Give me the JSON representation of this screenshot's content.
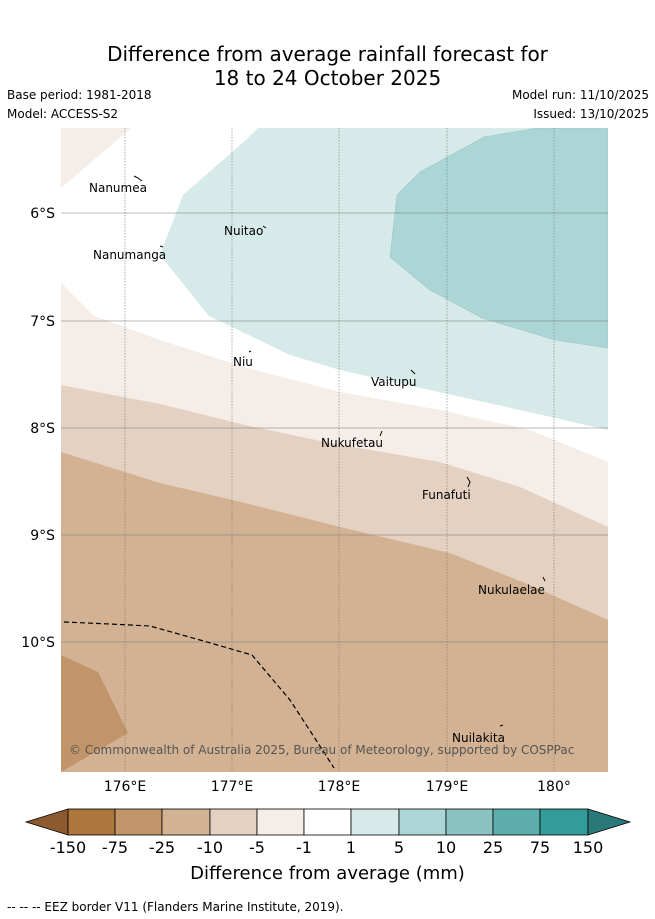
{
  "header": {
    "title_line1": "Difference from average rainfall forecast for",
    "title_line2": "18 to 24 October 2025",
    "base_period": "Base period: 1981-2018",
    "model": "Model: ACCESS-S2",
    "model_run": "Model run: 11/10/2025",
    "issued": "Issued: 13/10/2025"
  },
  "map": {
    "lat_labels": [
      "6°S",
      "7°S",
      "8°S",
      "9°S",
      "10°S"
    ],
    "lon_labels": [
      "176°E",
      "177°E",
      "178°E",
      "179°E",
      "180°"
    ],
    "places": [
      {
        "name": "Nanumea",
        "lon": 176.05,
        "lat": -5.7
      },
      {
        "name": "Nuitao",
        "lon": 177.3,
        "lat": -6.1
      },
      {
        "name": "Nanumanga",
        "lon": 176.32,
        "lat": -6.3
      },
      {
        "name": "Niu",
        "lon": 177.17,
        "lat": -7.3
      },
      {
        "name": "Vaitupu",
        "lon": 178.68,
        "lat": -7.49
      },
      {
        "name": "Nukufetau",
        "lon": 178.38,
        "lat": -8.04
      },
      {
        "name": "Funafuti",
        "lon": 179.2,
        "lat": -8.53
      },
      {
        "name": "Nukulaelae",
        "lon": 179.83,
        "lat": -9.4
      },
      {
        "name": "Nuilakita",
        "lon": 179.52,
        "lat": -10.8
      }
    ],
    "copyright": "© Commonwealth of Australia 2025, Bureau of Meteorology, supported by COSPPac"
  },
  "colorbar": {
    "title": "Difference from average (mm)",
    "ticks": [
      "-150",
      "-75",
      "-25",
      "-10",
      "-5",
      "-1",
      "1",
      "5",
      "10",
      "25",
      "75",
      "150"
    ],
    "colors": {
      "lt_neg150": "#8c5a2e",
      "neg150_75": "#ad763d",
      "neg75_25": "#c19569",
      "neg25_10": "#d2b293",
      "neg10_5": "#e4d1c1",
      "neg5_1": "#f5ede8",
      "neg1_1": "#ffffff",
      "pos1_5": "#d6eae9",
      "pos5_10": "#acd6d5",
      "pos10_25": "#89c2c1",
      "pos25_75": "#5dadad",
      "pos75_150": "#349b9b",
      "gt_150": "#2b7878"
    }
  },
  "footnote": "-- -- -- EEZ border V11 (Flanders Marine Institute, 2019)."
}
